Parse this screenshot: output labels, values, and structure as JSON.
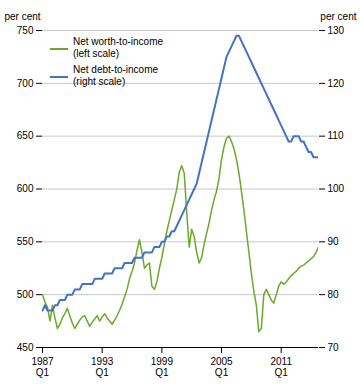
{
  "chart_data": {
    "type": "line",
    "categories": [
      "1987\nQ1",
      null,
      null,
      null,
      null,
      null,
      null,
      null,
      null,
      null,
      null,
      null,
      null,
      null,
      null,
      null,
      null,
      null,
      null,
      null,
      null,
      null,
      null,
      null,
      "1993\nQ1",
      null,
      null,
      null,
      null,
      null,
      null,
      null,
      null,
      null,
      null,
      null,
      null,
      null,
      null,
      null,
      null,
      null,
      null,
      null,
      null,
      null,
      null,
      null,
      "1999\nQ1",
      null,
      null,
      null,
      null,
      null,
      null,
      null,
      null,
      null,
      null,
      null,
      null,
      null,
      null,
      null,
      null,
      null,
      null,
      null,
      null,
      null,
      null,
      null,
      "2005\nQ1",
      null,
      null,
      null,
      null,
      null,
      null,
      null,
      null,
      null,
      null,
      null,
      null,
      null,
      null,
      null,
      null,
      null,
      null,
      null,
      null,
      null,
      null,
      null,
      "2011\nQ1",
      null,
      null,
      null,
      null,
      null,
      null,
      null,
      null,
      null,
      null,
      null,
      null,
      null,
      null,
      null
    ],
    "series": [
      {
        "name": "Net worth-to-income\n(left scale)",
        "color": "#6aaa2a",
        "values": [
          500,
          493,
          488,
          475,
          490,
          478,
          468,
          472,
          478,
          482,
          487,
          480,
          473,
          468,
          472,
          476,
          479,
          480,
          475,
          470,
          474,
          477,
          480,
          475,
          479,
          482,
          478,
          475,
          472,
          476,
          480,
          485,
          491,
          498,
          505,
          515,
          522,
          530,
          542,
          552,
          540,
          525,
          528,
          530,
          508,
          505,
          512,
          525,
          535,
          548,
          560,
          570,
          580,
          590,
          600,
          616,
          622,
          615,
          578,
          545,
          562,
          555,
          540,
          530,
          535,
          548,
          558,
          568,
          580,
          590,
          598,
          610,
          628,
          640,
          648,
          650,
          645,
          638,
          628,
          615,
          598,
          580,
          560,
          540,
          520,
          503,
          490,
          465,
          468,
          500,
          505,
          500,
          495,
          492,
          500,
          508,
          512,
          510,
          512,
          515,
          518,
          520,
          522,
          525,
          527,
          528,
          530,
          532,
          534,
          536,
          540,
          545
        ]
      },
      {
        "name": "Net debt-to-income\n(right scale)",
        "color": "#4472c4",
        "axis": "y2",
        "values": [
          77,
          78,
          77,
          77,
          77,
          78,
          78,
          79,
          79,
          79,
          80,
          80,
          80,
          81,
          81,
          81,
          82,
          82,
          82,
          82,
          82,
          83,
          83,
          83,
          83,
          84,
          84,
          84,
          84,
          85,
          85,
          85,
          85,
          86,
          86,
          86,
          86,
          87,
          87,
          87,
          87,
          88,
          88,
          88,
          88,
          89,
          89,
          89,
          90,
          90,
          91,
          91,
          92,
          92,
          93,
          94,
          95,
          96,
          97,
          98,
          99,
          100,
          101,
          103,
          105,
          107,
          109,
          111,
          113,
          115,
          117,
          119,
          121,
          123,
          125,
          126,
          127,
          128,
          129,
          129,
          128,
          127,
          126,
          125,
          124,
          123,
          122,
          121,
          120,
          119,
          118,
          117,
          116,
          115,
          114,
          113,
          112,
          111,
          110,
          109,
          109,
          110,
          110,
          110,
          109,
          109,
          108,
          107,
          107,
          106,
          106,
          106
        ]
      }
    ],
    "ylabel": "per cent",
    "y2label": "per cent",
    "ylim": [
      450,
      750
    ],
    "yticks": [
      450,
      500,
      550,
      600,
      650,
      700,
      750
    ],
    "y2lim": [
      70,
      130
    ],
    "y2ticks": [
      70,
      80,
      90,
      100,
      110,
      120,
      130
    ],
    "grid": true,
    "legend": "upper left"
  }
}
